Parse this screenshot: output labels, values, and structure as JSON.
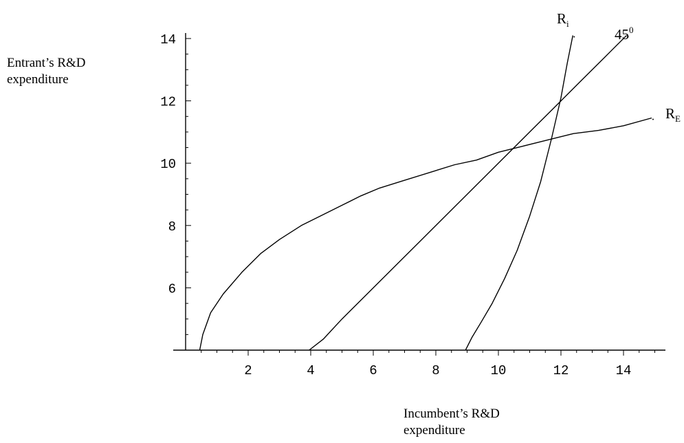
{
  "chart_data": {
    "type": "line",
    "xlabel_lines": [
      "Incumbent’s R&D",
      "expenditure"
    ],
    "ylabel_lines": [
      "Entrant’s R&D",
      "expenditure"
    ],
    "xlim": [
      0,
      15.5
    ],
    "ylim": [
      4,
      14.2
    ],
    "x_ticks": [
      2,
      4,
      6,
      8,
      10,
      12,
      14
    ],
    "y_ticks": [
      6,
      8,
      10,
      12,
      14
    ],
    "grid": false,
    "series": [
      {
        "name": "R_E",
        "label_main": "R",
        "label_sub": "E",
        "x": [
          0.45,
          0.55,
          0.8,
          1.2,
          1.8,
          2.4,
          3.0,
          3.7,
          4.3,
          5.0,
          5.6,
          6.2,
          7.0,
          7.8,
          8.6,
          9.3,
          10.0,
          10.8,
          11.6,
          12.4,
          13.2,
          14.0,
          14.9
        ],
        "y": [
          4.0,
          4.5,
          5.2,
          5.8,
          6.5,
          7.1,
          7.55,
          8.0,
          8.3,
          8.65,
          8.95,
          9.2,
          9.45,
          9.7,
          9.95,
          10.1,
          10.35,
          10.55,
          10.75,
          10.95,
          11.05,
          11.2,
          11.45
        ]
      },
      {
        "name": "45°",
        "label_main": "45",
        "label_sup": "0",
        "x": [
          3.95,
          4.4,
          5.0,
          5.8,
          6.6,
          7.5,
          8.4,
          9.3,
          10.2,
          11.0,
          11.8,
          12.6,
          13.4,
          14.1
        ],
        "y": [
          4.0,
          4.35,
          5.0,
          5.8,
          6.6,
          7.5,
          8.4,
          9.3,
          10.2,
          11.0,
          11.8,
          12.6,
          13.4,
          14.1
        ]
      },
      {
        "name": "R_i",
        "label_main": "R",
        "label_sub": "i",
        "x": [
          8.95,
          9.15,
          9.45,
          9.8,
          10.2,
          10.6,
          11.0,
          11.35,
          11.7,
          12.0,
          12.2,
          12.38
        ],
        "y": [
          4.0,
          4.4,
          4.9,
          5.5,
          6.3,
          7.2,
          8.3,
          9.4,
          10.8,
          12.1,
          13.2,
          14.1
        ]
      }
    ]
  }
}
